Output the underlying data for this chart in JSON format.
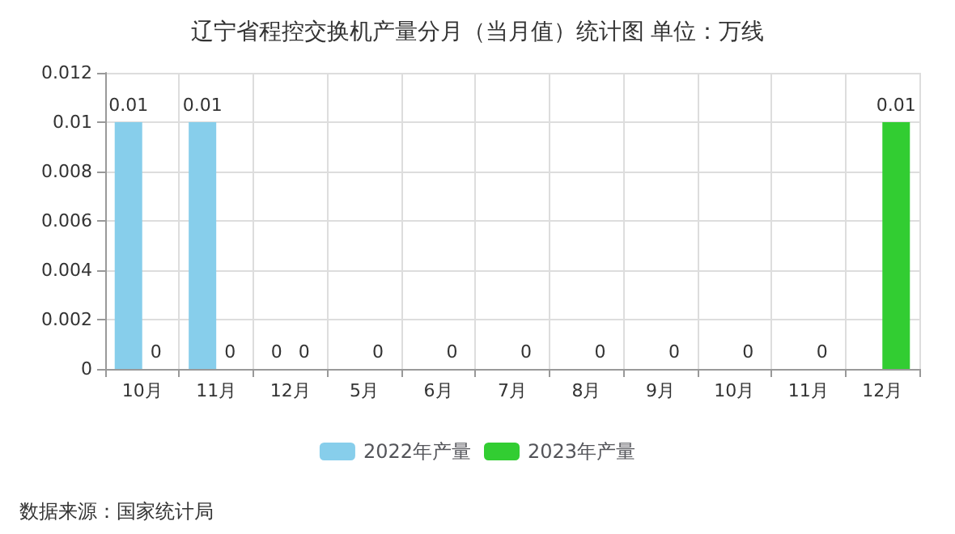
{
  "chart_data": {
    "type": "bar",
    "title": "辽宁省程控交换机产量分月（当月值）统计图 单位：万线",
    "categories": [
      "10月",
      "11月",
      "12月",
      "5月",
      "6月",
      "7月",
      "8月",
      "9月",
      "10月",
      "11月",
      "12月"
    ],
    "series": [
      {
        "name": "2022年产量",
        "color": "#87ceeb",
        "values": [
          0.01,
          0.01,
          0,
          null,
          null,
          null,
          null,
          null,
          null,
          null,
          null
        ]
      },
      {
        "name": "2023年产量",
        "color": "#32cd32",
        "values": [
          0,
          0,
          0,
          0,
          0,
          0,
          0,
          0,
          0,
          0,
          0.01
        ]
      }
    ],
    "ylim": [
      0,
      0.012
    ],
    "yticks": [
      0,
      0.002,
      0.004,
      0.006,
      0.008,
      0.01,
      0.012
    ],
    "grid": true,
    "legend": "bottom",
    "data_labels": true,
    "annotations": [
      "数据来源：国家统计局"
    ]
  }
}
